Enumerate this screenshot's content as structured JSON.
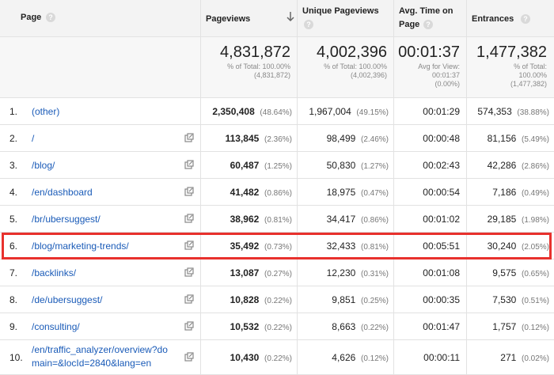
{
  "headers": {
    "page": "Page",
    "pageviews": "Pageviews",
    "unique_pageviews": "Unique Pageviews",
    "avg_time_line1": "Avg. Time on",
    "avg_time_line2": "Page",
    "entrances": "Entrances"
  },
  "totals": {
    "pageviews": {
      "value": "4,831,872",
      "line1": "% of Total: 100.00%",
      "line2": "(4,831,872)"
    },
    "unique_pageviews": {
      "value": "4,002,396",
      "line1": "% of Total: 100.00%",
      "line2": "(4,002,396)"
    },
    "avg_time": {
      "value": "00:01:37",
      "line1": "Avg for View:",
      "line2": "00:01:37",
      "line3": "(0.00%)"
    },
    "entrances": {
      "value": "1,477,382",
      "line1": "% of Total:",
      "line2": "100.00%",
      "line3": "(1,477,382)"
    }
  },
  "rows": [
    {
      "index": "1.",
      "page": "(other)",
      "pageviews": "2,350,408",
      "pageviews_pct": "(48.64%)",
      "unique": "1,967,004",
      "unique_pct": "(49.15%)",
      "avg_time": "00:01:29",
      "entrances": "574,353",
      "entrances_pct": "(38.88%)"
    },
    {
      "index": "2.",
      "page": "/",
      "pageviews": "113,845",
      "pageviews_pct": "(2.36%)",
      "unique": "98,499",
      "unique_pct": "(2.46%)",
      "avg_time": "00:00:48",
      "entrances": "81,156",
      "entrances_pct": "(5.49%)"
    },
    {
      "index": "3.",
      "page": "/blog/",
      "pageviews": "60,487",
      "pageviews_pct": "(1.25%)",
      "unique": "50,830",
      "unique_pct": "(1.27%)",
      "avg_time": "00:02:43",
      "entrances": "42,286",
      "entrances_pct": "(2.86%)"
    },
    {
      "index": "4.",
      "page": "/en/dashboard",
      "pageviews": "41,482",
      "pageviews_pct": "(0.86%)",
      "unique": "18,975",
      "unique_pct": "(0.47%)",
      "avg_time": "00:00:54",
      "entrances": "7,186",
      "entrances_pct": "(0.49%)"
    },
    {
      "index": "5.",
      "page": "/br/ubersuggest/",
      "pageviews": "38,962",
      "pageviews_pct": "(0.81%)",
      "unique": "34,417",
      "unique_pct": "(0.86%)",
      "avg_time": "00:01:02",
      "entrances": "29,185",
      "entrances_pct": "(1.98%)"
    },
    {
      "index": "6.",
      "page": "/blog/marketing-trends/",
      "pageviews": "35,492",
      "pageviews_pct": "(0.73%)",
      "unique": "32,433",
      "unique_pct": "(0.81%)",
      "avg_time": "00:05:51",
      "entrances": "30,240",
      "entrances_pct": "(2.05%)"
    },
    {
      "index": "7.",
      "page": "/backlinks/",
      "pageviews": "13,087",
      "pageviews_pct": "(0.27%)",
      "unique": "12,230",
      "unique_pct": "(0.31%)",
      "avg_time": "00:01:08",
      "entrances": "9,575",
      "entrances_pct": "(0.65%)"
    },
    {
      "index": "8.",
      "page": "/de/ubersuggest/",
      "pageviews": "10,828",
      "pageviews_pct": "(0.22%)",
      "unique": "9,851",
      "unique_pct": "(0.25%)",
      "avg_time": "00:00:35",
      "entrances": "7,530",
      "entrances_pct": "(0.51%)"
    },
    {
      "index": "9.",
      "page": "/consulting/",
      "pageviews": "10,532",
      "pageviews_pct": "(0.22%)",
      "unique": "8,663",
      "unique_pct": "(0.22%)",
      "avg_time": "00:01:47",
      "entrances": "1,757",
      "entrances_pct": "(0.12%)"
    },
    {
      "index": "10.",
      "page_line1": "/en/traffic_analyzer/overview?do",
      "page_line2": "main=&locId=2840&lang=en",
      "pageviews": "10,430",
      "pageviews_pct": "(0.22%)",
      "unique": "4,626",
      "unique_pct": "(0.12%)",
      "avg_time": "00:00:11",
      "entrances": "271",
      "entrances_pct": "(0.02%)"
    }
  ],
  "icons": {
    "help": "question-circle-icon",
    "sort": "arrow-down-icon",
    "popout": "open-in-new-window-icon"
  },
  "colors": {
    "highlight": "#e8312d",
    "link": "#1a5bb8"
  }
}
